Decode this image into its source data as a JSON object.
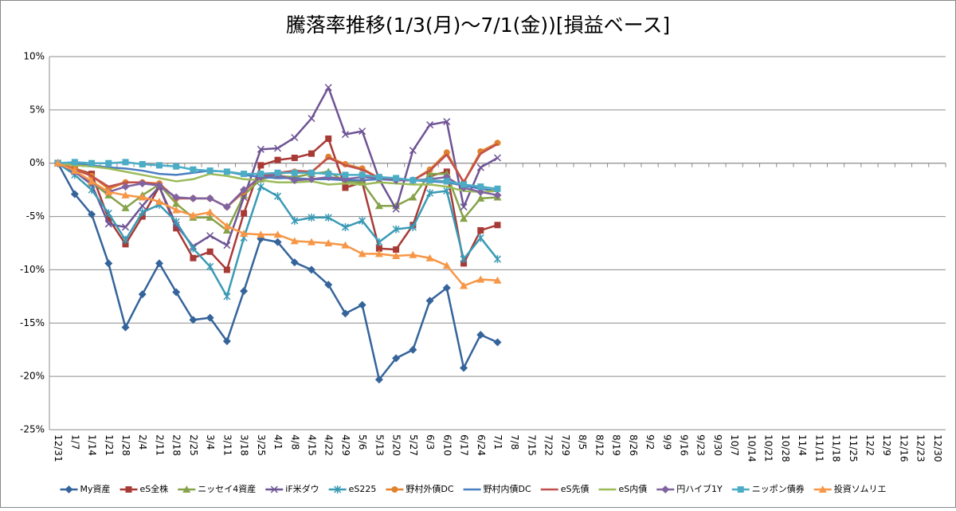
{
  "chart_data": {
    "type": "line",
    "title": "騰落率推移(1/3(月)～7/1(金))[損益ベース]",
    "categories": [
      "12/31",
      "1/7",
      "1/14",
      "1/21",
      "1/28",
      "2/4",
      "2/11",
      "2/18",
      "2/25",
      "3/4",
      "3/11",
      "3/18",
      "3/25",
      "4/1",
      "4/8",
      "4/15",
      "4/22",
      "4/29",
      "5/6",
      "5/13",
      "5/20",
      "5/27",
      "6/3",
      "6/10",
      "6/17",
      "6/24",
      "7/1",
      "7/8",
      "7/15",
      "7/22",
      "7/29",
      "8/5",
      "8/12",
      "8/19",
      "8/26",
      "9/2",
      "9/9",
      "9/16",
      "9/23",
      "9/30",
      "10/7",
      "10/14",
      "10/21",
      "10/28",
      "11/4",
      "11/11",
      "11/18",
      "11/25",
      "12/2",
      "12/9",
      "12/16",
      "12/23",
      "12/30"
    ],
    "ylim": [
      -25,
      10
    ],
    "yticks": [
      {
        "value": -25,
        "label": "-25%"
      },
      {
        "value": -20,
        "label": "-20%"
      },
      {
        "value": -15,
        "label": "-15%"
      },
      {
        "value": -10,
        "label": "-10%"
      },
      {
        "value": -5,
        "label": "-5%"
      },
      {
        "value": 0,
        "label": "0%"
      },
      {
        "value": 5,
        "label": "5%"
      },
      {
        "value": 10,
        "label": "10%"
      }
    ],
    "grid": true,
    "legend": "bottom",
    "series": [
      {
        "name": "My資産",
        "color": "#35649b",
        "marker": "diamond",
        "values": [
          0,
          -2.9,
          -4.8,
          -9.4,
          -15.4,
          -12.3,
          -9.4,
          -12.1,
          -14.7,
          -14.5,
          -16.7,
          -12.0,
          -7.1,
          -7.4,
          -9.3,
          -10.0,
          -11.4,
          -14.1,
          -13.3,
          -20.3,
          -18.3,
          -17.5,
          -12.9,
          -11.7,
          -19.2,
          -16.1,
          -16.8,
          null,
          null,
          null,
          null,
          null,
          null,
          null,
          null,
          null,
          null,
          null,
          null,
          null,
          null,
          null,
          null,
          null,
          null,
          null,
          null,
          null,
          null,
          null,
          null,
          null,
          null
        ]
      },
      {
        "name": "eS全株",
        "color": "#a83a36",
        "marker": "square",
        "values": [
          0,
          -0.5,
          -1.0,
          -5.2,
          -7.6,
          -5.0,
          -2.2,
          -6.1,
          -8.9,
          -8.3,
          -10.0,
          -4.7,
          -0.2,
          0.3,
          0.5,
          0.9,
          2.3,
          -2.3,
          -1.8,
          -8.0,
          -8.1,
          -5.8,
          -1.2,
          -0.8,
          -9.4,
          -6.3,
          -5.8,
          null,
          null,
          null,
          null,
          null,
          null,
          null,
          null,
          null,
          null,
          null,
          null,
          null,
          null,
          null,
          null,
          null,
          null,
          null,
          null,
          null,
          null,
          null,
          null,
          null,
          null
        ]
      },
      {
        "name": "ニッセイ4資産",
        "color": "#86a34a",
        "marker": "triangle",
        "values": [
          0,
          -0.7,
          -1.8,
          -3.0,
          -4.2,
          -3.0,
          -2.0,
          -3.8,
          -5.1,
          -5.1,
          -6.3,
          -3.0,
          -1.5,
          -1.2,
          -1.3,
          -1.0,
          -0.8,
          -1.7,
          -1.8,
          -4.0,
          -4.0,
          -3.2,
          -1.0,
          -1.0,
          -5.2,
          -3.3,
          -3.2,
          null,
          null,
          null,
          null,
          null,
          null,
          null,
          null,
          null,
          null,
          null,
          null,
          null,
          null,
          null,
          null,
          null,
          null,
          null,
          null,
          null,
          null,
          null,
          null,
          null,
          null
        ]
      },
      {
        "name": "iF米ダウ",
        "color": "#6e5494",
        "marker": "x",
        "values": [
          0,
          -0.8,
          -2.0,
          -5.7,
          -6.0,
          -4.0,
          -2.2,
          -5.8,
          -7.8,
          -6.8,
          -7.7,
          -3.2,
          1.3,
          1.4,
          2.4,
          4.2,
          7.1,
          2.7,
          3.0,
          -1.5,
          -4.3,
          1.2,
          3.6,
          3.9,
          -4.1,
          -0.4,
          0.5,
          null,
          null,
          null,
          null,
          null,
          null,
          null,
          null,
          null,
          null,
          null,
          null,
          null,
          null,
          null,
          null,
          null,
          null,
          null,
          null,
          null,
          null,
          null,
          null,
          null,
          null
        ]
      },
      {
        "name": "eS225",
        "color": "#3a9ab5",
        "marker": "star",
        "values": [
          0,
          -1.1,
          -2.5,
          -4.7,
          -7.2,
          -4.6,
          -3.9,
          -5.5,
          -8.0,
          -9.7,
          -12.5,
          -7.0,
          -2.2,
          -3.1,
          -5.4,
          -5.1,
          -5.1,
          -6.0,
          -5.4,
          -7.4,
          -6.2,
          -6.0,
          -2.8,
          -2.6,
          -9.0,
          -7.0,
          -9.0,
          null,
          null,
          null,
          null,
          null,
          null,
          null,
          null,
          null,
          null,
          null,
          null,
          null,
          null,
          null,
          null,
          null,
          null,
          null,
          null,
          null,
          null,
          null,
          null,
          null,
          null
        ]
      },
      {
        "name": "野村外債DC",
        "color": "#e0822d",
        "marker": "circle",
        "values": [
          0,
          -0.5,
          -1.2,
          -2.4,
          -1.8,
          -1.8,
          -1.9,
          -3.3,
          -3.3,
          -3.3,
          -4.1,
          -2.7,
          -1.2,
          -1.0,
          -0.8,
          -0.9,
          0.6,
          -0.1,
          -0.5,
          -1.4,
          -1.5,
          -1.6,
          -0.6,
          1.0,
          -1.8,
          1.1,
          1.9,
          null,
          null,
          null,
          null,
          null,
          null,
          null,
          null,
          null,
          null,
          null,
          null,
          null,
          null,
          null,
          null,
          null,
          null,
          null,
          null,
          null,
          null,
          null,
          null,
          null,
          null
        ]
      },
      {
        "name": "野村内債DC",
        "color": "#4a7ec0",
        "marker": "none",
        "values": [
          0,
          -0.1,
          -0.2,
          -0.4,
          -0.5,
          -0.7,
          -1.0,
          -1.1,
          -0.9,
          -0.7,
          -0.8,
          -1.1,
          -1.3,
          -1.4,
          -1.4,
          -1.5,
          -1.5,
          -1.6,
          -1.6,
          -1.5,
          -1.6,
          -1.6,
          -1.7,
          -1.8,
          -2.1,
          -2.4,
          -2.6,
          null,
          null,
          null,
          null,
          null,
          null,
          null,
          null,
          null,
          null,
          null,
          null,
          null,
          null,
          null,
          null,
          null,
          null,
          null,
          null,
          null,
          null,
          null,
          null,
          null,
          null
        ]
      },
      {
        "name": "eS先債",
        "color": "#c0504d",
        "marker": "none",
        "values": [
          0,
          -0.6,
          -1.2,
          -2.2,
          -1.8,
          -1.8,
          -2.0,
          -3.3,
          -3.3,
          -3.3,
          -4.1,
          -2.6,
          -1.2,
          -0.9,
          -0.7,
          -0.8,
          0.5,
          -0.2,
          -0.6,
          -1.4,
          -1.5,
          -1.6,
          -0.7,
          0.8,
          -1.8,
          0.9,
          1.8,
          null,
          null,
          null,
          null,
          null,
          null,
          null,
          null,
          null,
          null,
          null,
          null,
          null,
          null,
          null,
          null,
          null,
          null,
          null,
          null,
          null,
          null,
          null,
          null,
          null,
          null
        ]
      },
      {
        "name": "eS内債",
        "color": "#9bbb59",
        "marker": "none",
        "values": [
          0,
          -0.2,
          -0.3,
          -0.5,
          -0.8,
          -1.1,
          -1.4,
          -1.7,
          -1.5,
          -1.0,
          -1.2,
          -1.5,
          -1.6,
          -1.8,
          -1.8,
          -1.7,
          -2.0,
          -1.9,
          -2.0,
          -1.8,
          -1.9,
          -2.0,
          -2.0,
          -2.2,
          -2.6,
          -2.7,
          -2.6,
          null,
          null,
          null,
          null,
          null,
          null,
          null,
          null,
          null,
          null,
          null,
          null,
          null,
          null,
          null,
          null,
          null,
          null,
          null,
          null,
          null,
          null,
          null,
          null,
          null,
          null
        ]
      },
      {
        "name": "円ハイブ1Y",
        "color": "#8064a2",
        "marker": "diamond",
        "values": [
          0,
          -0.8,
          -1.8,
          -2.7,
          -2.2,
          -1.9,
          -2.1,
          -3.2,
          -3.3,
          -3.3,
          -4.1,
          -2.5,
          -1.3,
          -1.1,
          -1.6,
          -1.5,
          -1.3,
          -1.5,
          -1.3,
          -1.4,
          -1.6,
          -1.6,
          -1.5,
          -1.3,
          -2.3,
          -2.7,
          -3.0,
          null,
          null,
          null,
          null,
          null,
          null,
          null,
          null,
          null,
          null,
          null,
          null,
          null,
          null,
          null,
          null,
          null,
          null,
          null,
          null,
          null,
          null,
          null,
          null,
          null,
          null
        ]
      },
      {
        "name": "ニッポン債券",
        "color": "#4bacc6",
        "marker": "square",
        "values": [
          0,
          0.1,
          0.0,
          0.0,
          0.1,
          -0.1,
          -0.2,
          -0.3,
          -0.6,
          -0.7,
          -0.8,
          -1.0,
          -1.0,
          -0.9,
          -0.9,
          -0.9,
          -1.0,
          -1.1,
          -1.1,
          -1.3,
          -1.4,
          -1.6,
          -1.6,
          -1.7,
          -2.0,
          -2.2,
          -2.4,
          null,
          null,
          null,
          null,
          null,
          null,
          null,
          null,
          null,
          null,
          null,
          null,
          null,
          null,
          null,
          null,
          null,
          null,
          null,
          null,
          null,
          null,
          null,
          null,
          null,
          null
        ]
      },
      {
        "name": "投資ソムリエ",
        "color": "#f79646",
        "marker": "triangle",
        "values": [
          0,
          -0.7,
          -1.7,
          -2.7,
          -3.0,
          -3.2,
          -3.6,
          -4.4,
          -4.9,
          -4.6,
          -5.9,
          -6.6,
          -6.7,
          -6.7,
          -7.3,
          -7.4,
          -7.5,
          -7.7,
          -8.5,
          -8.5,
          -8.7,
          -8.6,
          -8.9,
          -9.6,
          -11.5,
          -10.9,
          -11.0,
          null,
          null,
          null,
          null,
          null,
          null,
          null,
          null,
          null,
          null,
          null,
          null,
          null,
          null,
          null,
          null,
          null,
          null,
          null,
          null,
          null,
          null,
          null,
          null,
          null,
          null
        ]
      }
    ]
  }
}
